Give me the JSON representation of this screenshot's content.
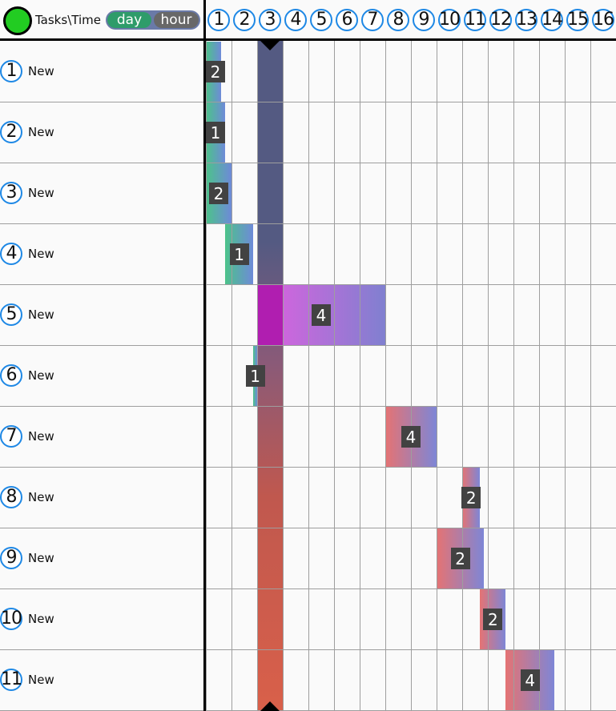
{
  "header": {
    "corner_label": "Tasks\\Time",
    "status_color": "#22cc22",
    "toggle": {
      "day_label": "day",
      "hour_label": "hour",
      "selected": "day"
    },
    "time_columns": [
      "1",
      "2",
      "3",
      "4",
      "5",
      "6",
      "7",
      "8",
      "9",
      "10",
      "11",
      "12",
      "13",
      "14",
      "15",
      "16"
    ]
  },
  "current_time": {
    "column": 3,
    "marker_icon": "triangle-marker-icon"
  },
  "tasks": [
    {
      "number": "1",
      "name": "New",
      "start": 0,
      "duration": 0.6,
      "label": "2",
      "gradient": [
        "#4cc38a",
        "#6e8ad8"
      ]
    },
    {
      "number": "2",
      "name": "New",
      "start": 0,
      "duration": 0.75,
      "label": "1",
      "gradient": [
        "#4cc38a",
        "#6e8ad8"
      ]
    },
    {
      "number": "3",
      "name": "New",
      "start": 0,
      "duration": 1.0,
      "label": "2",
      "gradient": [
        "#4cc38a",
        "#6e8ad8"
      ]
    },
    {
      "number": "4",
      "name": "New",
      "start": 0.75,
      "duration": 1.1,
      "label": "1",
      "gradient": [
        "#4cc38a",
        "#6e8ad8"
      ]
    },
    {
      "number": "5",
      "name": "New",
      "start": 2,
      "duration": 5.0,
      "label": "4",
      "gradient": [
        "#e060e0",
        "#8080d0"
      ]
    },
    {
      "number": "6",
      "name": "New",
      "start": 1.85,
      "duration": 0.15,
      "label": "1",
      "gradient": [
        "#4cc38a",
        "#6e8ad8"
      ]
    },
    {
      "number": "7",
      "name": "New",
      "start": 7,
      "duration": 2.0,
      "label": "4",
      "gradient": [
        "#e57373",
        "#7e86d6"
      ]
    },
    {
      "number": "8",
      "name": "New",
      "start": 10,
      "duration": 0.7,
      "label": "2",
      "gradient": [
        "#e57373",
        "#7e86d6"
      ]
    },
    {
      "number": "9",
      "name": "New",
      "start": 9,
      "duration": 1.85,
      "label": "2",
      "gradient": [
        "#e57373",
        "#7e86d6"
      ]
    },
    {
      "number": "10",
      "name": "New",
      "start": 10.7,
      "duration": 1.0,
      "label": "2",
      "gradient": [
        "#e57373",
        "#7e86d6"
      ]
    },
    {
      "number": "11",
      "name": "New",
      "start": 11.7,
      "duration": 1.9,
      "label": "4",
      "gradient": [
        "#e57373",
        "#7e86d6"
      ]
    }
  ],
  "colors": {
    "grid": "#9e9e9e",
    "circle_border": "#1e88e5",
    "label_box": "#424242",
    "current_column_top": "#545a82",
    "current_column_bottom": "#d9604a",
    "current_column_highlight": "#b01eb0"
  }
}
